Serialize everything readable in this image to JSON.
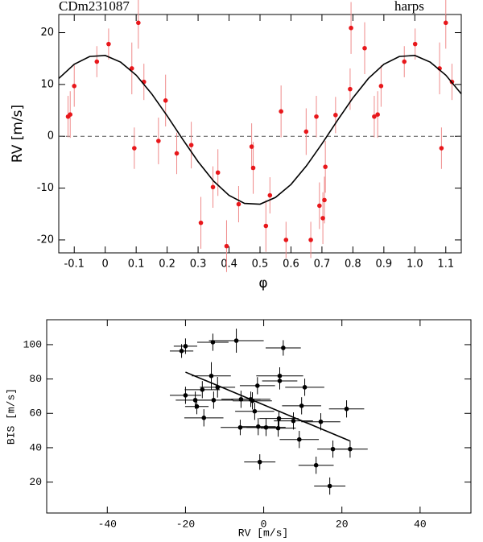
{
  "chart_data": [
    {
      "type": "scatter",
      "title": "CDm231087",
      "subtitle": "harps",
      "x_label": "φ",
      "y_label": "RV [m/s]",
      "xlim": [
        -0.15,
        1.15
      ],
      "ylim": [
        -22.5,
        23.5
      ],
      "xticks": [
        -0.1,
        0,
        0.1,
        0.2,
        0.3,
        0.4,
        0.5,
        0.6,
        0.7,
        0.8,
        0.9,
        {
          "value": 1,
          "label": "1.0"
        },
        1.1
      ],
      "yticks": [
        -20,
        -10,
        0,
        10,
        20
      ],
      "reference_line": 0,
      "color": "#e8171b",
      "error_color": "#ef8a8a",
      "fit_color": "#000000",
      "x": [
        -0.12,
        -0.113,
        -0.1,
        -0.027,
        0.011,
        0.086,
        0.094,
        0.107,
        0.125,
        0.172,
        0.195,
        0.231,
        0.278,
        0.309,
        0.348,
        0.364,
        0.392,
        0.431,
        0.473,
        0.478,
        0.519,
        0.532,
        0.568,
        0.584,
        0.649,
        0.664,
        0.682,
        0.692,
        0.703,
        0.708,
        0.711,
        0.744,
        0.791,
        0.794,
        0.838,
        0.869,
        0.88,
        0.891,
        0.966,
        1.001,
        1.08,
        1.086,
        1.1,
        1.12
      ],
      "values": [
        3.8,
        4.2,
        9.7,
        14.4,
        17.8,
        13.1,
        -2.3,
        21.9,
        10.5,
        -0.9,
        6.9,
        -3.3,
        -1.7,
        -16.7,
        -9.8,
        -7.0,
        -21.2,
        -13.1,
        -2.0,
        -6.1,
        -17.3,
        -11.4,
        4.8,
        -20.0,
        0.9,
        -20.0,
        3.8,
        -13.4,
        -15.8,
        -12.3,
        -5.9,
        4.1,
        9.1,
        20.9,
        17.0,
        3.8,
        4.2,
        9.7,
        14.4,
        17.8,
        13.1,
        -2.3,
        21.9,
        10.5
      ],
      "errors": [
        4,
        4.5,
        4,
        3,
        3,
        5,
        4,
        5,
        3.5,
        4.5,
        5,
        4,
        4.5,
        5,
        4,
        4.5,
        5,
        3.5,
        4.5,
        5,
        5,
        3.5,
        5,
        3.5,
        4.5,
        3.5,
        4,
        4.5,
        5,
        4.5,
        5,
        3.5,
        4,
        5,
        5,
        4,
        4.5,
        4,
        3,
        3,
        5,
        4,
        5,
        3.5
      ],
      "fit": {
        "x": [
          -0.15,
          -0.1,
          -0.05,
          0,
          0.05,
          0.1,
          0.15,
          0.2,
          0.25,
          0.3,
          0.35,
          0.4,
          0.45,
          0.5,
          0.55,
          0.6,
          0.65,
          0.7,
          0.75,
          0.8,
          0.85,
          0.9,
          0.95,
          1.0,
          1.05,
          1.1,
          1.15
        ],
        "values": [
          11.15,
          13.9,
          15.4,
          15.6,
          14.3,
          11.8,
          8.2,
          3.95,
          -0.56,
          -4.9,
          -8.65,
          -11.4,
          -12.95,
          -13.1,
          -11.8,
          -9.3,
          -5.7,
          -1.45,
          3.06,
          7.4,
          11.15,
          13.9,
          15.4,
          15.6,
          14.3,
          11.8,
          8.2
        ]
      }
    },
    {
      "type": "scatter",
      "x_label": "RV [m/s]",
      "y_label": "BIS [m/s]",
      "xlim": [
        -55.5,
        53
      ],
      "ylim": [
        2,
        114.5
      ],
      "xticks": [
        -40,
        -20,
        0,
        20,
        40
      ],
      "yticks": [
        20,
        40,
        60,
        80,
        100
      ],
      "color": "#000000",
      "error_color": "#000000",
      "fit_color": "#000000",
      "x": [
        -21.0,
        -20.0,
        -13.0,
        -7.0,
        5.0,
        -13.4,
        4.1,
        4.1,
        10.5,
        -11.8,
        -15.7,
        -20.0,
        -17.5,
        -17.1,
        -12.8,
        -5.8,
        -3.3,
        -1.6,
        -2.9,
        -2.3,
        9.7,
        21.2,
        -15.3,
        -6.0,
        -1.4,
        0.6,
        3.9,
        3.7,
        7.6,
        14.6,
        9.1,
        17.7,
        22.1,
        13.4,
        -1.0,
        16.9
      ],
      "values": [
        96.3,
        99.1,
        101.4,
        102.3,
        98.1,
        81.8,
        78.9,
        81.8,
        75.2,
        75.2,
        73.8,
        70.5,
        67.7,
        64.0,
        67.7,
        68.2,
        68.2,
        76.1,
        67.3,
        61.2,
        64.4,
        62.6,
        57.4,
        51.8,
        52.3,
        51.8,
        57.0,
        51.4,
        55.6,
        55.1,
        44.8,
        39.2,
        39.2,
        29.8,
        31.7,
        17.7
      ],
      "errors": [
        4,
        4.5,
        5,
        7,
        4.5,
        8,
        5,
        5,
        5,
        6,
        5,
        5,
        5,
        4.5,
        5,
        5,
        4.5,
        5,
        5,
        5,
        5,
        5,
        5,
        4.5,
        5,
        5,
        4.5,
        5,
        5,
        5,
        5,
        5,
        5,
        5,
        4.5,
        5
      ],
      "x_errors": [
        3,
        3,
        4,
        7,
        4.5,
        5,
        4.5,
        6,
        5,
        4.5,
        4.5,
        4,
        5,
        3,
        5,
        5,
        5,
        4.5,
        5,
        5,
        5,
        4.5,
        5,
        5,
        4.5,
        5,
        5,
        4.5,
        5,
        5,
        5,
        4,
        4.5,
        4.5,
        4,
        4
      ],
      "fit": {
        "x": [
          -20,
          22
        ],
        "values": [
          84,
          44
        ]
      }
    }
  ]
}
